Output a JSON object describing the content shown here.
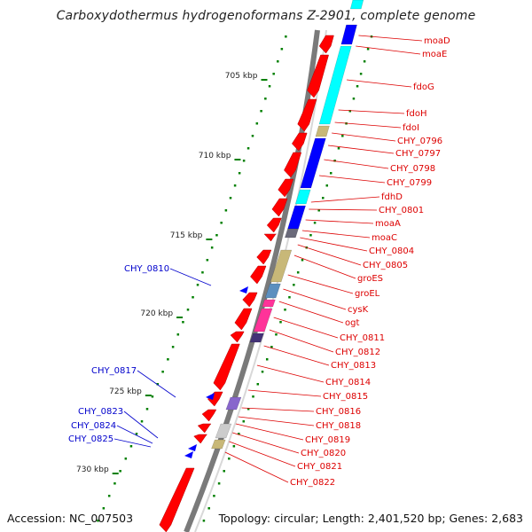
{
  "title": "Carboxydothermus hydrogenoformans Z-2901, complete genome",
  "accession": "Accession: NC_007503",
  "topology": "Topology: circular; Length: 2,401,520 bp; Genes: 2,683",
  "colors": {
    "forward_gene": "#ff0000",
    "label_red": "#dd0000",
    "label_blue": "#0000cc",
    "tick": "#008000",
    "backbone": "#808080",
    "cyan": "#00ffff",
    "blue": "#0000ff",
    "tan": "#c8b878",
    "steel": "#5c8fbf",
    "pink": "#ff3399",
    "navy": "#443377",
    "lavender": "#8866cc",
    "lightgray": "#cccccc"
  },
  "scale_labels": [
    "705 kbp",
    "710 kbp",
    "715 kbp",
    "720 kbp",
    "725 kbp",
    "730 kbp"
  ],
  "red_labels": [
    "moaD",
    "moaE",
    "fdoG",
    "fdoH",
    "fdoI",
    "CHY_0796",
    "CHY_0797",
    "CHY_0798",
    "CHY_0799",
    "fdhD",
    "CHY_0801",
    "moaA",
    "moaC",
    "CHY_0804",
    "CHY_0805",
    "groES",
    "groEL",
    "cysK",
    "ogt",
    "CHY_0811",
    "CHY_0812",
    "CHY_0813",
    "CHY_0814",
    "CHY_0815",
    "CHY_0816",
    "CHY_0818",
    "CHY_0819",
    "CHY_0820",
    "CHY_0821",
    "CHY_0822"
  ],
  "blue_labels": [
    "CHY_0810",
    "CHY_0817",
    "CHY_0823",
    "CHY_0824",
    "CHY_0825"
  ]
}
